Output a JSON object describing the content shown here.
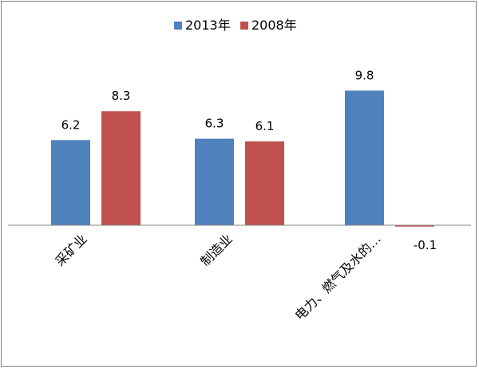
{
  "chart_data": {
    "type": "bar",
    "categories": [
      "采矿业",
      "制造业",
      "电力、燃气及水的…"
    ],
    "series": [
      {
        "name": "2013年",
        "color": "#4f81bd",
        "values": [
          6.2,
          6.3,
          9.8
        ]
      },
      {
        "name": "2008年",
        "color": "#c0504d",
        "values": [
          8.3,
          6.1,
          -0.1
        ]
      }
    ],
    "data_labels": [
      [
        "6.2",
        "6.3",
        "9.8"
      ],
      [
        "8.3",
        "6.1",
        "-0.1"
      ]
    ],
    "title": "",
    "xlabel": "",
    "ylabel": "",
    "ylim": [
      -0.1,
      9.8
    ],
    "grid": false,
    "legend_position": "top-center"
  }
}
